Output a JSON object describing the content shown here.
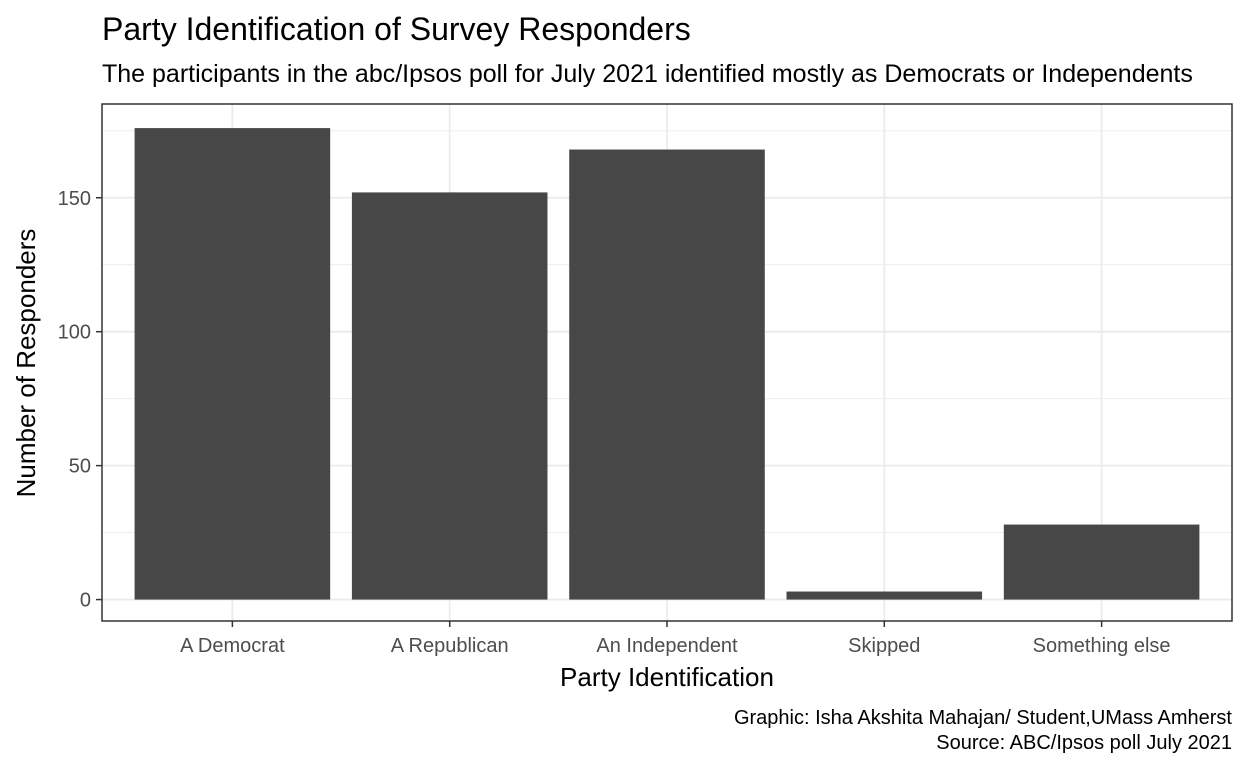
{
  "chart_data": {
    "type": "bar",
    "title": "Party Identification of Survey Responders",
    "subtitle": "The participants in the abc/Ipsos poll for July 2021 identified mostly as  Democrats or Independents",
    "xlabel": "Party Identification",
    "ylabel": "Number of Responders",
    "categories": [
      "A Democrat",
      "A Republican",
      "An Independent",
      "Skipped",
      "Something else"
    ],
    "values": [
      176,
      152,
      168,
      3,
      28
    ],
    "ylim": [
      -8,
      185
    ],
    "yticks": [
      0,
      50,
      100,
      150
    ],
    "bar_color": "#474747",
    "grid": true,
    "legend": "none",
    "caption": [
      "Graphic: Isha Akshita Mahajan/ Student,UMass Amherst",
      "Source: ABC/Ipsos poll July 2021"
    ]
  }
}
